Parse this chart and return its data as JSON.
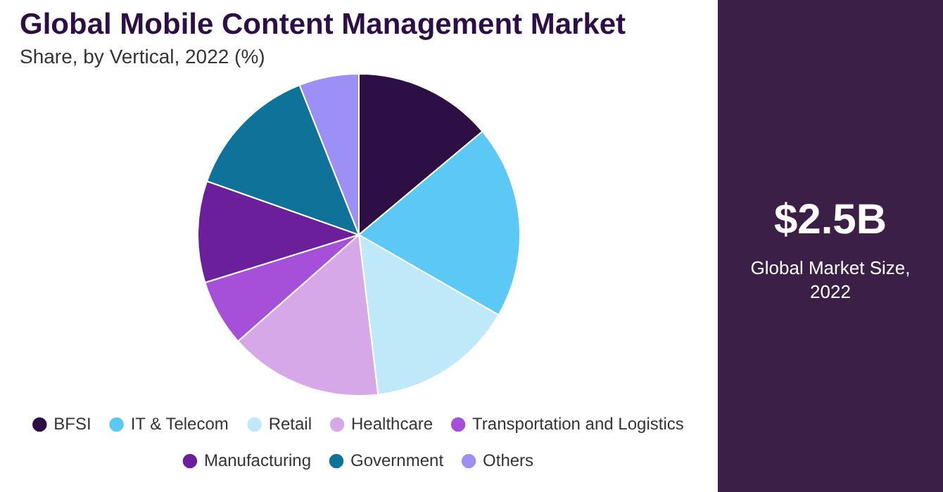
{
  "chart_data": {
    "type": "pie",
    "title": "Global Mobile Content Management Market",
    "subtitle": "Share, by Vertical, 2022 (%)",
    "categories": [
      "BFSI",
      "IT & Telecom",
      "Retail",
      "Healthcare",
      "Transportation and Logistics",
      "Manufacturing",
      "Government",
      "Others"
    ],
    "values": [
      13.9,
      19.4,
      14.8,
      15.4,
      6.7,
      10.2,
      13.6,
      6.0
    ],
    "colors": [
      "#2d0f45",
      "#5bc8f5",
      "#bfe9f9",
      "#d6a8e8",
      "#a64fd8",
      "#6b1f9a",
      "#0f7399",
      "#9c8ff5"
    ],
    "legend": "bottom",
    "annotations": [
      "$2.5B",
      "Global Market Size, 2022"
    ]
  }
}
